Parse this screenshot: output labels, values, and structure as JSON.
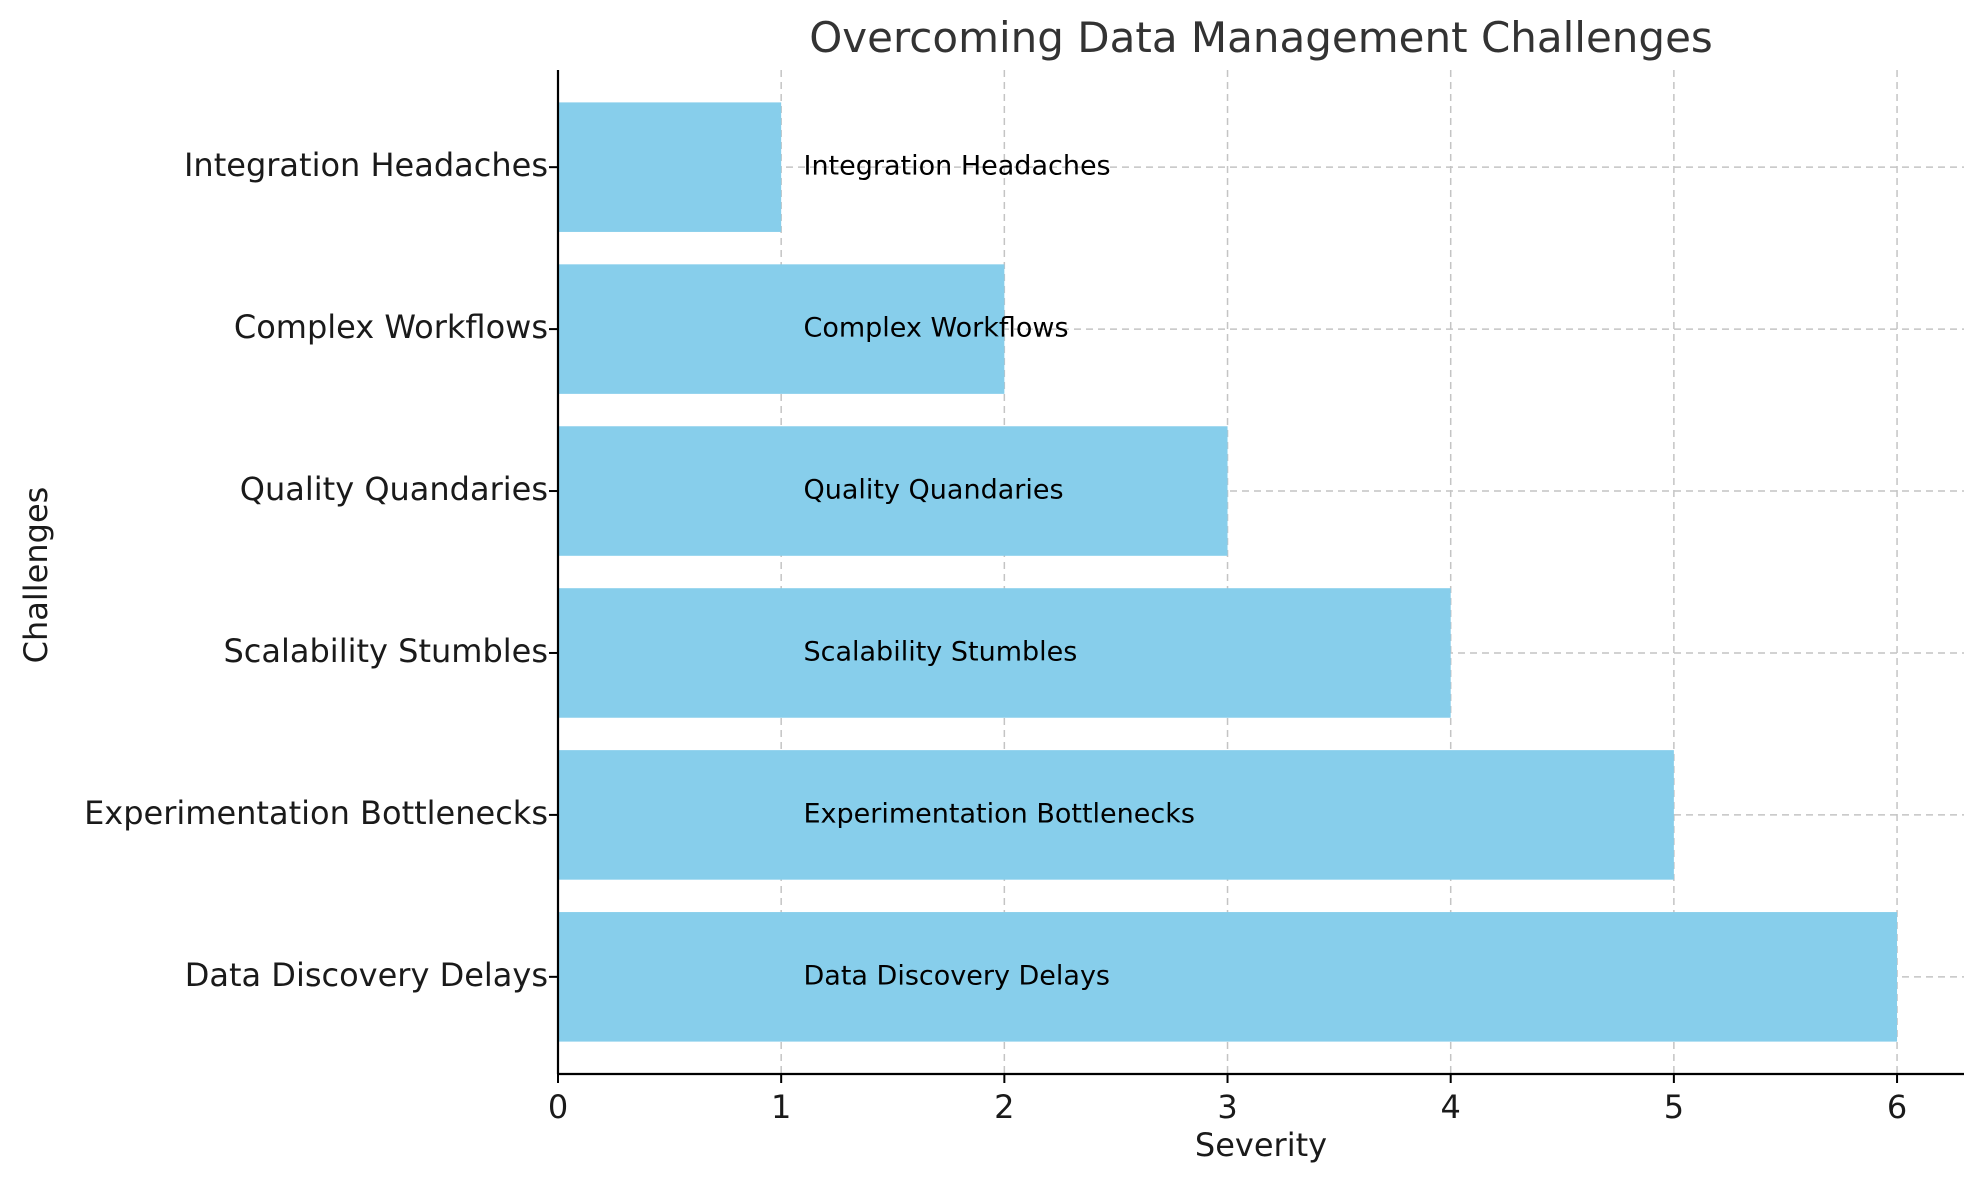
{
  "chart_data": {
    "type": "bar",
    "orientation": "horizontal",
    "title": "Overcoming Data Management Challenges",
    "xlabel": "Severity",
    "ylabel": "Challenges",
    "categories": [
      "Data Discovery Delays",
      "Experimentation Bottlenecks",
      "Scalability Stumbles",
      "Quality Quandaries",
      "Complex Workflows",
      "Integration Headaches"
    ],
    "values": [
      6,
      5,
      4,
      3,
      2,
      1
    ],
    "bar_labels": [
      "Data Discovery Delays",
      "Experimentation Bottlenecks",
      "Scalability Stumbles",
      "Quality Quandaries",
      "Complex Workflows",
      "Integration Headaches"
    ],
    "xlim": [
      0,
      6.3
    ],
    "xticks": [
      "0",
      "1",
      "2",
      "3",
      "4",
      "5",
      "6"
    ],
    "grid": true,
    "bar_color": "#87ceeb"
  }
}
